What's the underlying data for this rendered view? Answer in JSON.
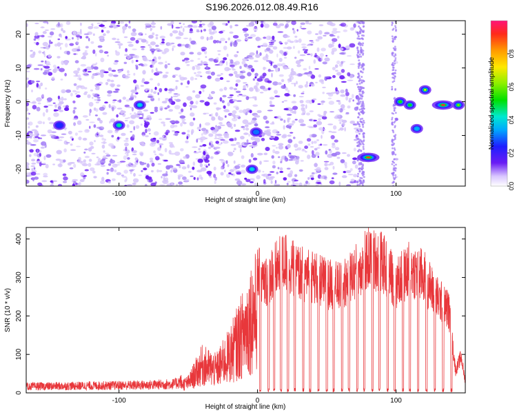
{
  "title": "S196.2026.012.08.49.R16",
  "colors": {
    "snr_line": "#e8373b",
    "axis": "#000000",
    "scatter_purple": "#7b3cf0",
    "noise_light": "#c8b0f5"
  },
  "chart_data": [
    {
      "type": "heatmap",
      "title": "S196.2026.012.08.49.R16",
      "xlabel": "Height of straight line (km)",
      "ylabel": "Frequency (Hz)",
      "xlim": [
        -167,
        150
      ],
      "ylim": [
        -25,
        24
      ],
      "xticks": [
        -100,
        0,
        100
      ],
      "xtick_labels": [
        "-100",
        "0",
        "100"
      ],
      "yticks": [
        -20,
        -10,
        0,
        10,
        20
      ],
      "ytick_labels": [
        "-20",
        "-10",
        "0",
        "10",
        "20"
      ],
      "colorbar": {
        "label": "Normalized spectral amplitude",
        "range": [
          0.0,
          1.0
        ],
        "ticks": [
          0.0,
          0.2,
          0.4,
          0.6,
          0.8
        ],
        "tick_labels": [
          "0.0",
          "0.2",
          "0.4",
          "0.6",
          "0.8"
        ]
      },
      "features": [
        {
          "x": -100,
          "y": -7,
          "amplitude": 0.45
        },
        {
          "x": -85,
          "y": -1,
          "amplitude": 0.4
        },
        {
          "x": -143,
          "y": -7,
          "amplitude": 0.25
        },
        {
          "x": -4,
          "y": -20,
          "amplitude": 0.4
        },
        {
          "x": -1,
          "y": -9,
          "amplitude": 0.3
        },
        {
          "x": 80,
          "y": -16.5,
          "amplitude": 0.9
        },
        {
          "x": 103,
          "y": 0,
          "amplitude": 0.55
        },
        {
          "x": 110,
          "y": -1,
          "amplitude": 0.5
        },
        {
          "x": 115,
          "y": -8,
          "amplitude": 0.35
        },
        {
          "x": 121,
          "y": 3.5,
          "amplitude": 0.7
        },
        {
          "x": 134,
          "y": -1,
          "amplitude": 0.95
        },
        {
          "x": 145,
          "y": -1,
          "amplitude": 0.6
        }
      ]
    },
    {
      "type": "line",
      "xlabel": "Height of straight line (km)",
      "ylabel": "SNR (10 * v/v)",
      "xlim": [
        -167,
        150
      ],
      "ylim": [
        0,
        430
      ],
      "xticks": [
        -100,
        0,
        100
      ],
      "xtick_labels": [
        "-100",
        "0",
        "100"
      ],
      "yticks": [
        0,
        100,
        200,
        300,
        400
      ],
      "ytick_labels": [
        "0",
        "100",
        "200",
        "300",
        "400"
      ],
      "envelope_x": [
        -167,
        -120,
        -80,
        -60,
        -50,
        -40,
        -30,
        -20,
        -10,
        -5,
        0,
        5,
        10,
        20,
        30,
        40,
        50,
        60,
        70,
        80,
        90,
        100,
        110,
        120,
        130,
        138,
        143,
        147,
        150
      ],
      "envelope_y": [
        18,
        20,
        22,
        25,
        40,
        110,
        90,
        150,
        240,
        300,
        330,
        300,
        330,
        360,
        330,
        320,
        300,
        290,
        330,
        370,
        360,
        300,
        340,
        320,
        260,
        230,
        60,
        100,
        30
      ],
      "dropouts_x": [
        -3,
        2,
        8,
        12,
        17,
        22,
        27,
        33,
        38,
        44,
        50,
        55,
        61,
        66,
        72,
        77,
        83,
        88,
        94,
        99,
        105,
        110,
        116,
        122,
        128,
        134,
        140
      ]
    }
  ]
}
